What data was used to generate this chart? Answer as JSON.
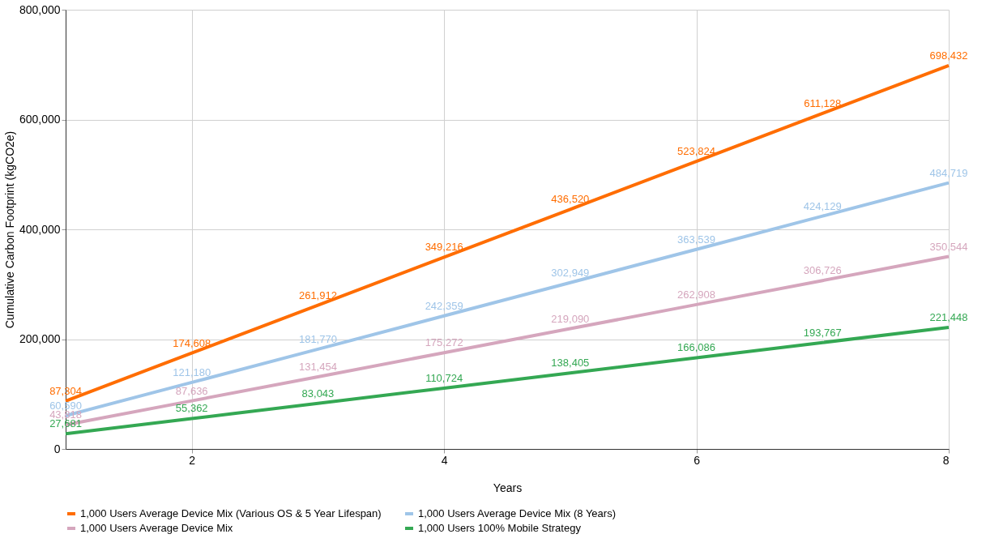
{
  "chart_data": {
    "type": "line",
    "xlabel": "Years",
    "ylabel": "Cumulative Carbon Footprint (kgCO2e)",
    "x": [
      1,
      2,
      3,
      4,
      5,
      6,
      7,
      8
    ],
    "series": [
      {
        "name": "1,000 Users Average Device Mix (Various OS & 5 Year Lifespan)",
        "color": "#ff6d01",
        "values": [
          87304,
          174608,
          261912,
          349216,
          436520,
          523824,
          611128,
          698432
        ],
        "value_labels": [
          "87,304",
          "174,608",
          "261,912",
          "349,216",
          "436,520",
          "523,824",
          "611,128",
          "698,432"
        ]
      },
      {
        "name": "1,000 Users Average Device Mix (8 Years)",
        "color": "#9fc5e8",
        "values": [
          60590,
          121180,
          181770,
          242359,
          302949,
          363539,
          424129,
          484719
        ],
        "value_labels": [
          "60,590",
          "121,180",
          "181,770",
          "242,359",
          "302,949",
          "363,539",
          "424,129",
          "484,719"
        ]
      },
      {
        "name": "1,000 Users Average Device Mix",
        "color": "#d5a6bd",
        "values": [
          43818,
          87636,
          131454,
          175272,
          219090,
          262908,
          306726,
          350544
        ],
        "value_labels": [
          "43,818",
          "87,636",
          "131,454",
          "175,272",
          "219,090",
          "262,908",
          "306,726",
          "350,544"
        ]
      },
      {
        "name": "1,000 Users 100% Mobile Strategy",
        "color": "#34a853",
        "values": [
          27681,
          55362,
          83043,
          110724,
          138405,
          166086,
          193767,
          221448
        ],
        "value_labels": [
          "27,681",
          "55,362",
          "83,043",
          "110,724",
          "138,405",
          "166,086",
          "193,767",
          "221,448"
        ]
      }
    ],
    "xlim": [
      1,
      8
    ],
    "xticks": [
      2,
      4,
      6,
      8
    ],
    "ylim": [
      0,
      800000
    ],
    "yticks": [
      0,
      {
        "value": 200000,
        "label": "200,000"
      },
      {
        "value": 400000,
        "label": "400,000"
      },
      {
        "value": 600000,
        "label": "600,000"
      },
      {
        "value": 800000,
        "label": "800,000"
      }
    ],
    "grid": true,
    "legend": "bottom",
    "marker": "none",
    "line_style": "solid"
  }
}
